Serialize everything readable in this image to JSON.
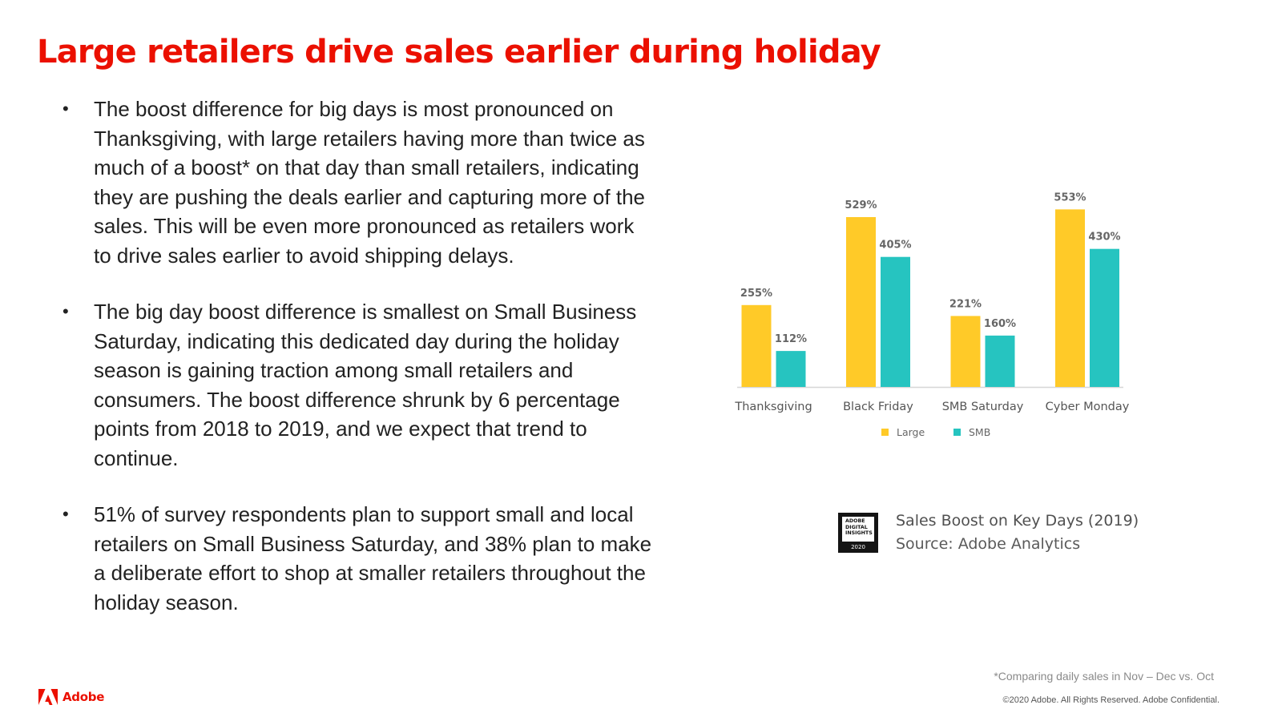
{
  "slide": {
    "title": "Large retailers drive sales earlier during holiday",
    "bullets": [
      "The boost difference for big days is most pronounced on Thanksgiving, with large retailers having more than twice as much of a boost* on that day than small retailers, indicating they are pushing the deals earlier and capturing more of the sales. This will be even more pronounced as retailers work to drive sales earlier to avoid shipping delays.",
      "The big day boost difference is smallest on Small Business Saturday, indicating this dedicated day during the holiday season is gaining traction among small retailers and consumers. The boost difference shrunk by 6 percentage points from 2018 to 2019, and we expect that trend to continue.",
      "51% of survey respondents plan to support small and local retailers on Small Business Saturday, and 38% plan to make a deliberate effort to shop at smaller retailers throughout the holiday season."
    ],
    "bullet_char": "•",
    "caption_title": "Sales Boost on Key Days (2019)",
    "caption_source": "Source: Adobe Analytics",
    "badge_lines": [
      "ADOBE",
      "DIGITAL",
      "INSIGHTS"
    ],
    "badge_year": "2020",
    "footnote": "*Comparing daily sales in Nov – Dec vs. Oct",
    "copyright": "©2020 Adobe. All Rights Reserved. Adobe Confidential.",
    "logo_text": "Adobe",
    "colors": {
      "title": "#eb1000",
      "large": "#ffca28",
      "smb": "#26c4c0",
      "brand": "#eb1000"
    }
  },
  "chart_data": {
    "type": "bar",
    "categories": [
      "Thanksgiving",
      "Black Friday",
      "SMB Saturday",
      "Cyber Monday"
    ],
    "series": [
      {
        "name": "Large",
        "values": [
          255,
          529,
          221,
          553
        ],
        "labels": [
          "255%",
          "529%",
          "221%",
          "553%"
        ],
        "color": "#ffca28"
      },
      {
        "name": "SMB",
        "values": [
          112,
          405,
          160,
          430
        ],
        "labels": [
          "112%",
          "405%",
          "160%",
          "430%"
        ],
        "color": "#26c4c0"
      }
    ],
    "title": "",
    "xlabel": "",
    "ylabel": "",
    "ylim": [
      0,
      600
    ],
    "grid": false,
    "legend_position": "bottom"
  }
}
